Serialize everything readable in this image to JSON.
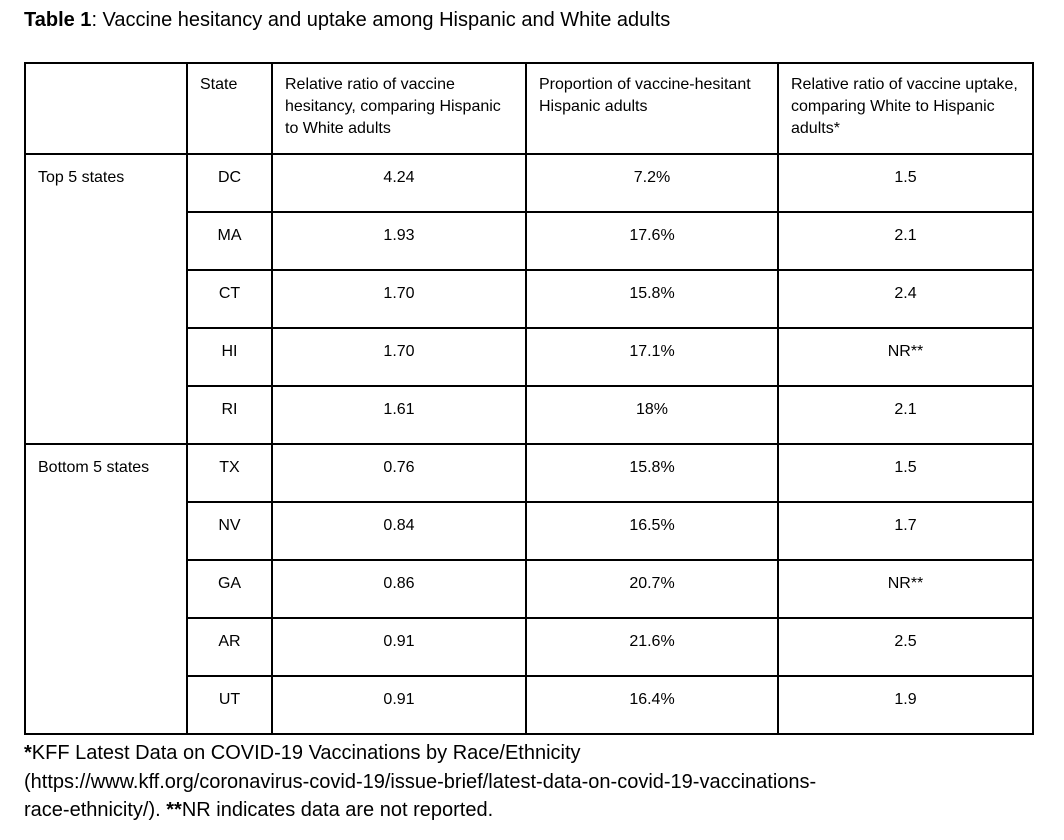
{
  "title": {
    "label": "Table 1",
    "text": ": Vaccine hesitancy and uptake among Hispanic and White adults"
  },
  "table": {
    "corner": "",
    "columns": [
      "State",
      "Relative ratio of vaccine hesitancy, comparing Hispanic to White adults",
      "Proportion of vaccine-hesitant Hispanic adults",
      "Relative ratio of vaccine uptake, comparing White to Hispanic adults*"
    ],
    "groups": [
      {
        "label": "Top 5 states",
        "rows": [
          {
            "state": "DC",
            "hesitancy_ratio": "4.24",
            "hesitant_proportion": "7.2%",
            "uptake_ratio": "1.5"
          },
          {
            "state": "MA",
            "hesitancy_ratio": "1.93",
            "hesitant_proportion": "17.6%",
            "uptake_ratio": "2.1"
          },
          {
            "state": "CT",
            "hesitancy_ratio": "1.70",
            "hesitant_proportion": "15.8%",
            "uptake_ratio": "2.4"
          },
          {
            "state": "HI",
            "hesitancy_ratio": "1.70",
            "hesitant_proportion": "17.1%",
            "uptake_ratio": "NR**"
          },
          {
            "state": "RI",
            "hesitancy_ratio": "1.61",
            "hesitant_proportion": "18%",
            "uptake_ratio": "2.1"
          }
        ]
      },
      {
        "label": "Bottom 5 states",
        "rows": [
          {
            "state": "TX",
            "hesitancy_ratio": "0.76",
            "hesitant_proportion": "15.8%",
            "uptake_ratio": "1.5"
          },
          {
            "state": "NV",
            "hesitancy_ratio": "0.84",
            "hesitant_proportion": "16.5%",
            "uptake_ratio": "1.7"
          },
          {
            "state": "GA",
            "hesitancy_ratio": "0.86",
            "hesitant_proportion": "20.7%",
            "uptake_ratio": "NR**"
          },
          {
            "state": "AR",
            "hesitancy_ratio": "0.91",
            "hesitant_proportion": "21.6%",
            "uptake_ratio": "2.5"
          },
          {
            "state": "UT",
            "hesitancy_ratio": "0.91",
            "hesitant_proportion": "16.4%",
            "uptake_ratio": "1.9"
          }
        ]
      }
    ]
  },
  "footnote": {
    "line1": {
      "marker": "*",
      "text": "KFF Latest Data on COVID-19 Vaccinations by Race/Ethnicity"
    },
    "line2": {
      "text": "(https://www.kff.org/coronavirus-covid-19/issue-brief/latest-data-on-covid-19-vaccinations-"
    },
    "line3": {
      "pre": "race-ethnicity/). ",
      "marker": "**",
      "text": "NR indicates data are not reported."
    }
  }
}
